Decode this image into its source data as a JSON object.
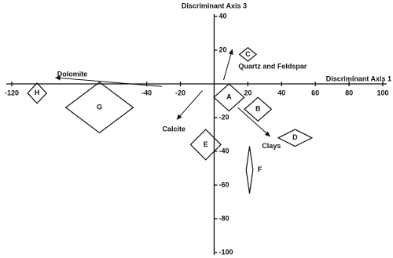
{
  "chart_data": {
    "type": "scatter",
    "x_label": "Discriminant Axis 1",
    "y_label": "Discriminant Axis 3",
    "xlim": [
      -120,
      100
    ],
    "ylim": [
      -100,
      40
    ],
    "xticks": [
      -120,
      -40,
      -20,
      20,
      40,
      60,
      80,
      100
    ],
    "yticks": [
      40,
      20,
      -20,
      -40,
      -60,
      -80,
      -100
    ],
    "color": "#111111",
    "series": [
      {
        "name": "H",
        "x": -105,
        "y": -5.5,
        "dx": 5.6,
        "dy": 6
      },
      {
        "name": "G",
        "x": -68,
        "y": -14,
        "dx": 20,
        "dy": 15
      },
      {
        "name": "A",
        "x": 8.8,
        "y": -8,
        "dx": 9,
        "dy": 8
      },
      {
        "name": "B",
        "x": 26,
        "y": -15,
        "dx": 8,
        "dy": 7
      },
      {
        "name": "C",
        "x": 20,
        "y": 17.5,
        "dx": 5,
        "dy": 4
      },
      {
        "name": "D",
        "x": 48,
        "y": -32,
        "dx": 10,
        "dy": 5
      },
      {
        "name": "E",
        "x": -5,
        "y": -36,
        "dx": 9,
        "dy": 9
      },
      {
        "name": "F",
        "x": 21,
        "y": -51,
        "dx": 2,
        "dy": 14
      }
    ],
    "vectors": [
      {
        "label": "Dolomite",
        "x0": -31,
        "y0": -1.5,
        "x1": -94,
        "y1": 3.7
      },
      {
        "label": "Quartz and Feldspar",
        "x0": 5.6,
        "y0": 2.3,
        "x1": 10.7,
        "y1": 20.3
      },
      {
        "label": "Calcite",
        "x0": -7,
        "y0": -4,
        "x1": -22,
        "y1": -21
      },
      {
        "label": "Clays",
        "x0": 14,
        "y0": -14,
        "x1": 33,
        "y1": -31
      }
    ]
  }
}
